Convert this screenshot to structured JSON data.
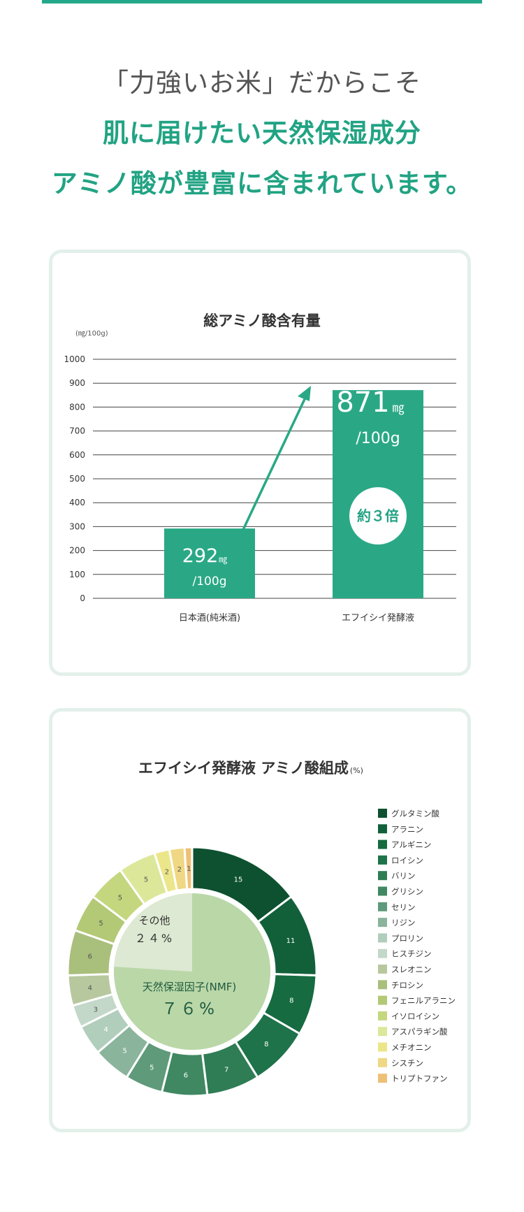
{
  "header": {
    "line1": "「力強いお米」だからこそ",
    "line2": "肌に届けたい天然保湿成分",
    "line3": "アミノ酸が豊富に含まれています。"
  },
  "colors": {
    "accent": "#21a383",
    "bar": "#2aa886",
    "card_border": "#e3f0ea"
  },
  "chart_data": [
    {
      "type": "bar",
      "title": "総アミノ酸含有量",
      "unit_label": "(㎎/100g)",
      "ylim": [
        0,
        1000
      ],
      "yticks": [
        0,
        100,
        200,
        300,
        400,
        500,
        600,
        700,
        800,
        900,
        1000
      ],
      "grid": true,
      "categories": [
        "日本酒(純米酒)",
        "エフイシイ発酵液"
      ],
      "values": [
        292,
        871
      ],
      "labels": [
        {
          "value": "292",
          "unit": "㎎",
          "per": "/100g"
        },
        {
          "value": "871",
          "unit": "㎎",
          "per": "/100g"
        }
      ],
      "badge": "約３倍"
    },
    {
      "type": "pie",
      "title": "エフイシイ発酵液 アミノ酸組成",
      "title_unit": "(%)",
      "slices": [
        {
          "name": "グルタミン酸",
          "value": 15,
          "color": "#0d5130"
        },
        {
          "name": "アラニン",
          "value": 11,
          "color": "#12603a"
        },
        {
          "name": "アルギニン",
          "value": 8,
          "color": "#166b41"
        },
        {
          "name": "ロイシン",
          "value": 8,
          "color": "#1e734a"
        },
        {
          "name": "バリン",
          "value": 7,
          "color": "#2f7d55"
        },
        {
          "name": "グリシン",
          "value": 6,
          "color": "#3f8862"
        },
        {
          "name": "セリン",
          "value": 5,
          "color": "#5f9a7a"
        },
        {
          "name": "リジン",
          "value": 5,
          "color": "#8ab49c"
        },
        {
          "name": "プロリン",
          "value": 4,
          "color": "#b1cdbc"
        },
        {
          "name": "ヒスチジン",
          "value": 3,
          "color": "#c3d8c8"
        },
        {
          "name": "スレオニン",
          "value": 4,
          "color": "#b7c89e"
        },
        {
          "name": "チロシン",
          "value": 6,
          "color": "#a9bf7c"
        },
        {
          "name": "フェニルアラニン",
          "value": 5,
          "color": "#b3c975"
        },
        {
          "name": "イソロイシン",
          "value": 5,
          "color": "#c4d77e"
        },
        {
          "name": "アスパラギン酸",
          "value": 5,
          "color": "#dce79a"
        },
        {
          "name": "メチオニン",
          "value": 2,
          "color": "#ebe68a"
        },
        {
          "name": "シスチン",
          "value": 2,
          "color": "#efd783"
        },
        {
          "name": "トリプトファン",
          "value": 1,
          "color": "#eec077"
        }
      ],
      "inner": [
        {
          "label": "その他",
          "value_text": "２４%",
          "value": 24,
          "color": "#dde9d2"
        },
        {
          "label": "天然保湿因子(NMF)",
          "value_text": "７６%",
          "value": 76,
          "color": "#bad7a8"
        }
      ]
    }
  ]
}
